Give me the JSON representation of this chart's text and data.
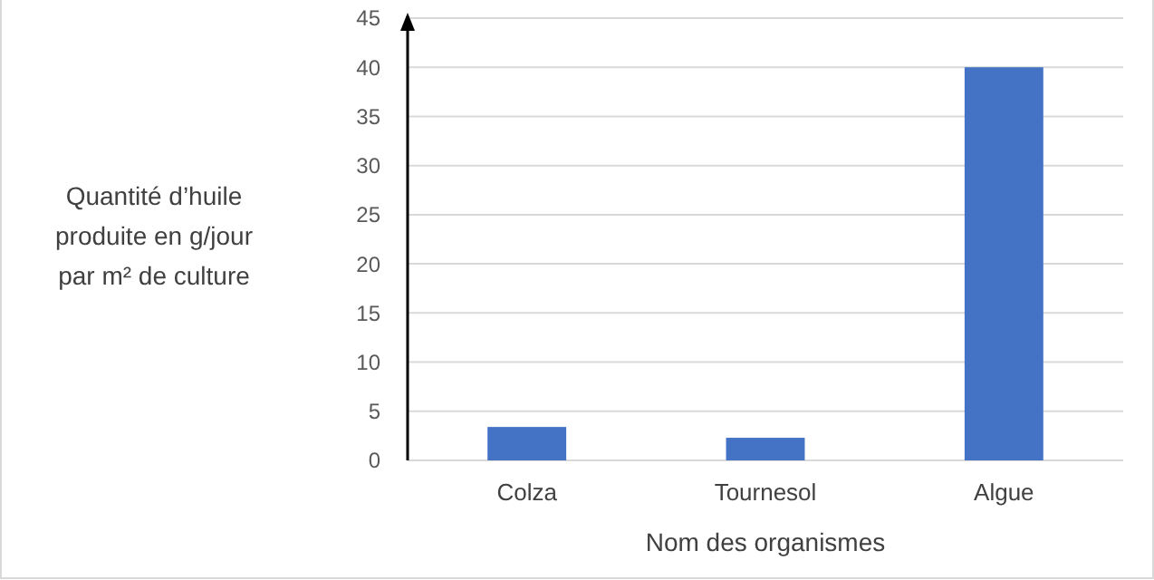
{
  "chart_data": {
    "type": "bar",
    "xlabel": "Nom des organismes",
    "ylabel": "Quantité d’huile produite en g/jour par m² de culture",
    "categories": [
      "Colza",
      "Tournesol",
      "Algue"
    ],
    "values": [
      3.4,
      2.3,
      40
    ],
    "color": "#4472c4",
    "ylim": [
      0,
      45
    ],
    "yticks": [
      0,
      5,
      10,
      15,
      20,
      25,
      30,
      35,
      40,
      45
    ],
    "grid": "y"
  }
}
